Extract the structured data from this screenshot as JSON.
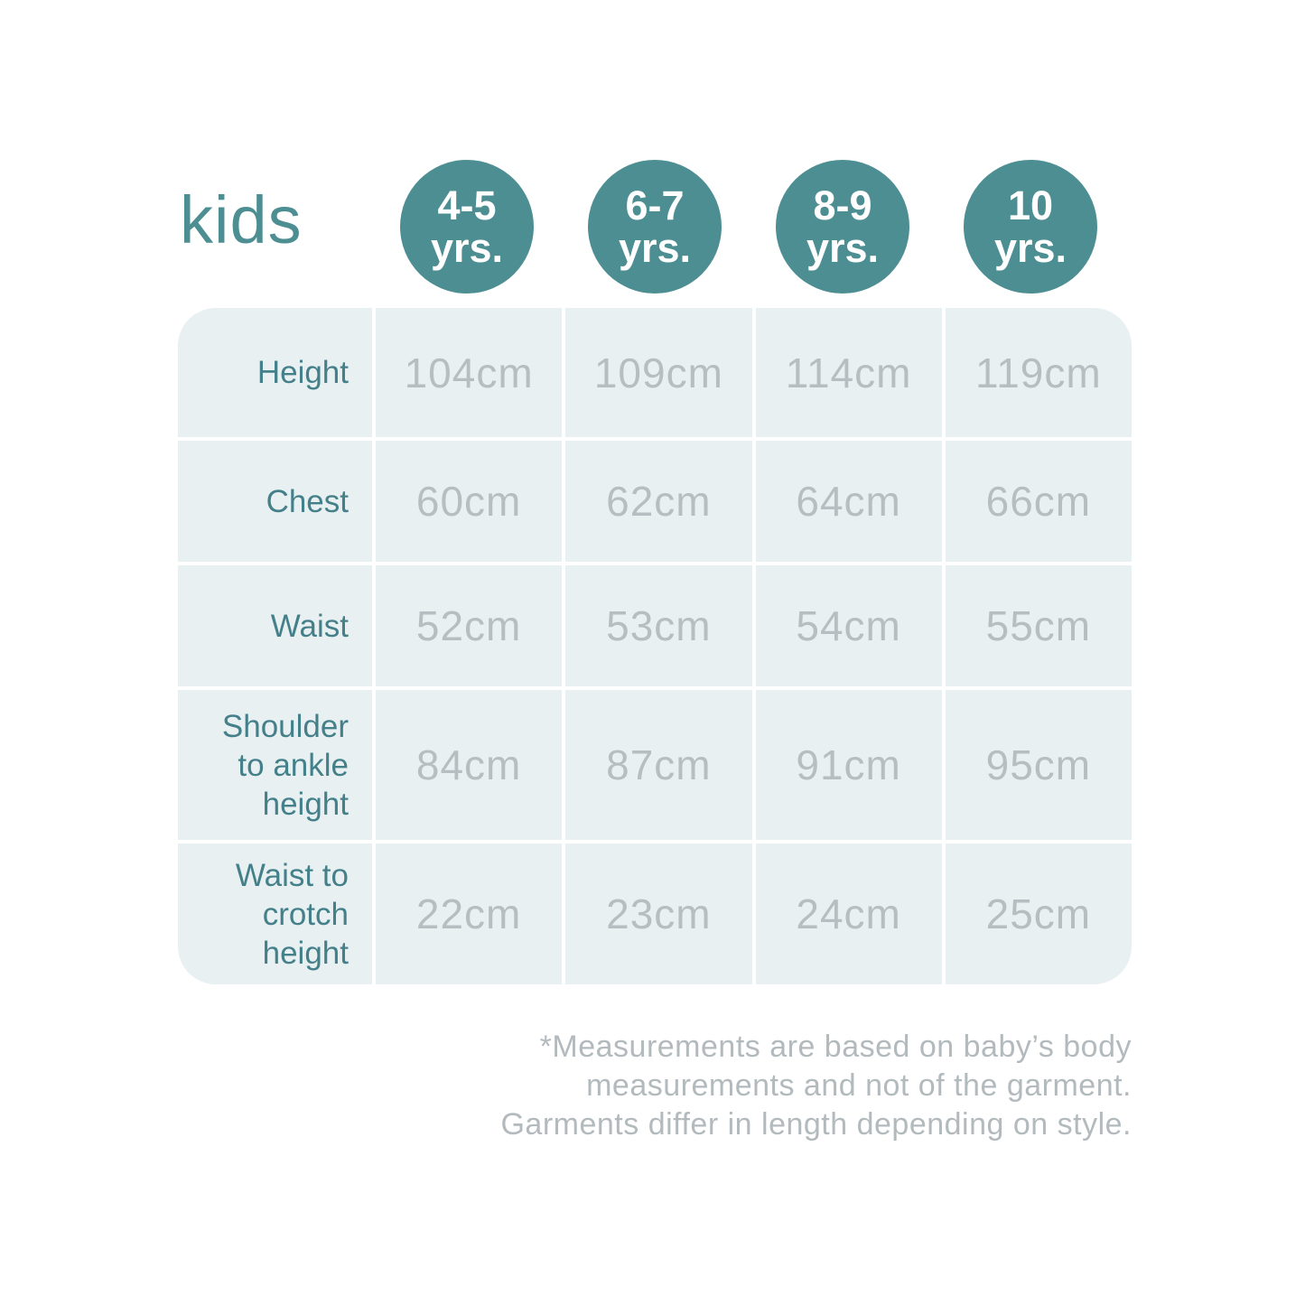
{
  "title": "kids",
  "badges": [
    {
      "line1": "4-5",
      "line2": "yrs."
    },
    {
      "line1": "6-7",
      "line2": "yrs."
    },
    {
      "line1": "8-9",
      "line2": "yrs."
    },
    {
      "line1": "10",
      "line2": "yrs."
    }
  ],
  "chart_data": {
    "type": "table",
    "title": "kids",
    "columns": [
      "4-5 yrs.",
      "6-7 yrs.",
      "8-9 yrs.",
      "10 yrs."
    ],
    "rows": [
      {
        "label": "Height",
        "values": [
          "104cm",
          "109cm",
          "114cm",
          "119cm"
        ]
      },
      {
        "label": "Chest",
        "values": [
          "60cm",
          "62cm",
          "64cm",
          "66cm"
        ]
      },
      {
        "label": "Waist",
        "values": [
          "52cm",
          "53cm",
          "54cm",
          "55cm"
        ]
      },
      {
        "label": "Shoulder to ankle height",
        "values": [
          "84cm",
          "87cm",
          "91cm",
          "95cm"
        ]
      },
      {
        "label": "Waist to crotch height",
        "values": [
          "22cm",
          "23cm",
          "24cm",
          "25cm"
        ]
      }
    ]
  },
  "footnote": {
    "line1": "*Measurements are based on baby’s body",
    "line2": "measurements and not of the garment.",
    "line3": "Garments differ in length depending on style."
  },
  "colors": {
    "accent_teal": "#4d8e93",
    "label_teal": "#44808a",
    "cell_bg": "#e9f0f2",
    "value_gray": "#b7bec1",
    "footnote_gray": "#b3babd"
  }
}
